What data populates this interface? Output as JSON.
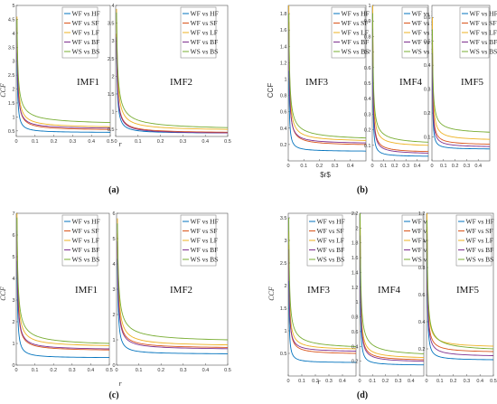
{
  "series_names": [
    "WF vs HF",
    "WF vs SF",
    "WF vs LF",
    "WF vs BF",
    "WS vs BS"
  ],
  "series_colors": [
    "#0072BD",
    "#D95319",
    "#EDB120",
    "#7E2F8E",
    "#77AC30"
  ],
  "chart_data": [
    {
      "type": "line",
      "group": "a",
      "label": "(a)",
      "ylabel": "CCF",
      "xlabel": "r",
      "panels": [
        {
          "title": "IMF1",
          "xlim": [
            0,
            0.5
          ],
          "ylim": [
            0.3,
            5
          ],
          "xticks": [
            0,
            0.1,
            0.2,
            0.3,
            0.4,
            0.5
          ],
          "yticks": [
            0.5,
            1,
            1.5,
            2,
            2.5,
            3,
            3.5,
            4,
            4.5,
            5
          ],
          "startY": [
            3.3,
            4.2,
            4.6,
            4.1,
            4.5
          ],
          "endY": [
            0.45,
            0.55,
            0.65,
            0.6,
            0.8
          ]
        },
        {
          "title": "IMF2",
          "xlim": [
            0,
            0.5
          ],
          "ylim": [
            0.3,
            4
          ],
          "xticks": [
            0,
            0.1,
            0.2,
            0.3,
            0.4,
            0.5
          ],
          "yticks": [
            0.5,
            1,
            1.5,
            2,
            2.5,
            3,
            3.5,
            4
          ],
          "startY": [
            3.0,
            3.2,
            3.9,
            3.1,
            3.8
          ],
          "endY": [
            0.4,
            0.42,
            0.5,
            0.4,
            0.55
          ]
        }
      ]
    },
    {
      "type": "line",
      "group": "b",
      "label": "(b)",
      "ylabel": "CCF",
      "xlabel": "$r$",
      "panels": [
        {
          "title": "IMF3",
          "xlim": [
            0,
            0.5
          ],
          "ylim": [
            0,
            1.9
          ],
          "xticks": [
            0,
            0.1,
            0.2,
            0.3,
            0.4
          ],
          "yticks": [
            0.2,
            0.4,
            0.6,
            0.8,
            1,
            1.2,
            1.4,
            1.6,
            1.8
          ],
          "startY": [
            1.1,
            1.7,
            1.9,
            1.6,
            1.8
          ],
          "endY": [
            0.12,
            0.2,
            0.25,
            0.22,
            0.28
          ]
        },
        {
          "title": "IMF4",
          "xlim": [
            0,
            0.5
          ],
          "ylim": [
            0,
            1.0
          ],
          "xticks": [
            0,
            0.1,
            0.2,
            0.3,
            0.4
          ],
          "yticks": [
            0.1,
            0.2,
            0.3,
            0.4,
            0.5,
            0.6,
            0.7,
            0.8,
            0.9,
            1
          ],
          "startY": [
            0.7,
            0.9,
            1.0,
            0.85,
            0.95
          ],
          "endY": [
            0.03,
            0.06,
            0.1,
            0.05,
            0.12
          ]
        },
        {
          "title": "IMF5",
          "xlim": [
            0,
            0.5
          ],
          "ylim": [
            0,
            0.65
          ],
          "xticks": [
            0,
            0.1,
            0.2,
            0.3,
            0.4
          ],
          "yticks": [
            0.1,
            0.2,
            0.3,
            0.4,
            0.5,
            0.6
          ],
          "startY": [
            0.4,
            0.5,
            0.6,
            0.45,
            0.55
          ],
          "endY": [
            0.05,
            0.07,
            0.09,
            0.06,
            0.12
          ]
        }
      ]
    },
    {
      "type": "line",
      "group": "c",
      "label": "(c)",
      "ylabel": "CCF",
      "xlabel": "r",
      "panels": [
        {
          "title": "IMF1",
          "xlim": [
            0,
            0.5
          ],
          "ylim": [
            0,
            7
          ],
          "xticks": [
            0,
            0.1,
            0.2,
            0.3,
            0.4,
            0.5
          ],
          "yticks": [
            0,
            1,
            2,
            3,
            4,
            5,
            6,
            7
          ],
          "startY": [
            4.8,
            6.0,
            7.0,
            6.2,
            6.8
          ],
          "endY": [
            0.35,
            0.7,
            0.9,
            0.75,
            1.0
          ]
        },
        {
          "title": "IMF2",
          "xlim": [
            0,
            0.5
          ],
          "ylim": [
            0,
            6
          ],
          "xticks": [
            0,
            0.1,
            0.2,
            0.3,
            0.4,
            0.5
          ],
          "yticks": [
            0,
            1,
            2,
            3,
            4,
            5,
            6
          ],
          "startY": [
            4.2,
            5.2,
            5.8,
            4.9,
            5.6
          ],
          "endY": [
            0.45,
            0.7,
            0.8,
            0.65,
            1.0
          ]
        }
      ]
    },
    {
      "type": "line",
      "group": "d",
      "label": "(d)",
      "ylabel": "CCF",
      "xlabel": "r",
      "panels": [
        {
          "title": "IMF3",
          "xlim": [
            0,
            0.5
          ],
          "ylim": [
            0,
            3.6
          ],
          "xticks": [
            0,
            0.1,
            0.2,
            0.3,
            0.4
          ],
          "yticks": [
            0.5,
            1,
            1.5,
            2,
            2.5,
            3,
            3.5
          ],
          "startY": [
            2.1,
            2.9,
            3.2,
            2.8,
            3.5
          ],
          "endY": [
            0.3,
            0.5,
            0.6,
            0.55,
            0.65
          ]
        },
        {
          "title": "IMF4",
          "xlim": [
            0,
            0.5
          ],
          "ylim": [
            0,
            2.2
          ],
          "xticks": [
            0,
            0.1,
            0.2,
            0.3,
            0.4
          ],
          "yticks": [
            0.2,
            0.4,
            0.6,
            0.8,
            1,
            1.2,
            1.4,
            1.6,
            1.8,
            2,
            2.2
          ],
          "startY": [
            1.6,
            2.0,
            2.1,
            1.9,
            2.2
          ],
          "endY": [
            0.15,
            0.22,
            0.25,
            0.2,
            0.3
          ]
        },
        {
          "title": "IMF5",
          "xlim": [
            0,
            0.5
          ],
          "ylim": [
            0,
            1.2
          ],
          "xticks": [
            0,
            0.1,
            0.2,
            0.3,
            0.4,
            0.5
          ],
          "yticks": [
            0.2,
            0.4,
            0.6,
            0.8,
            1,
            1.2
          ],
          "startY": [
            1.0,
            1.1,
            1.2,
            1.05,
            1.15
          ],
          "endY": [
            0.12,
            0.18,
            0.22,
            0.15,
            0.2
          ]
        }
      ]
    }
  ]
}
